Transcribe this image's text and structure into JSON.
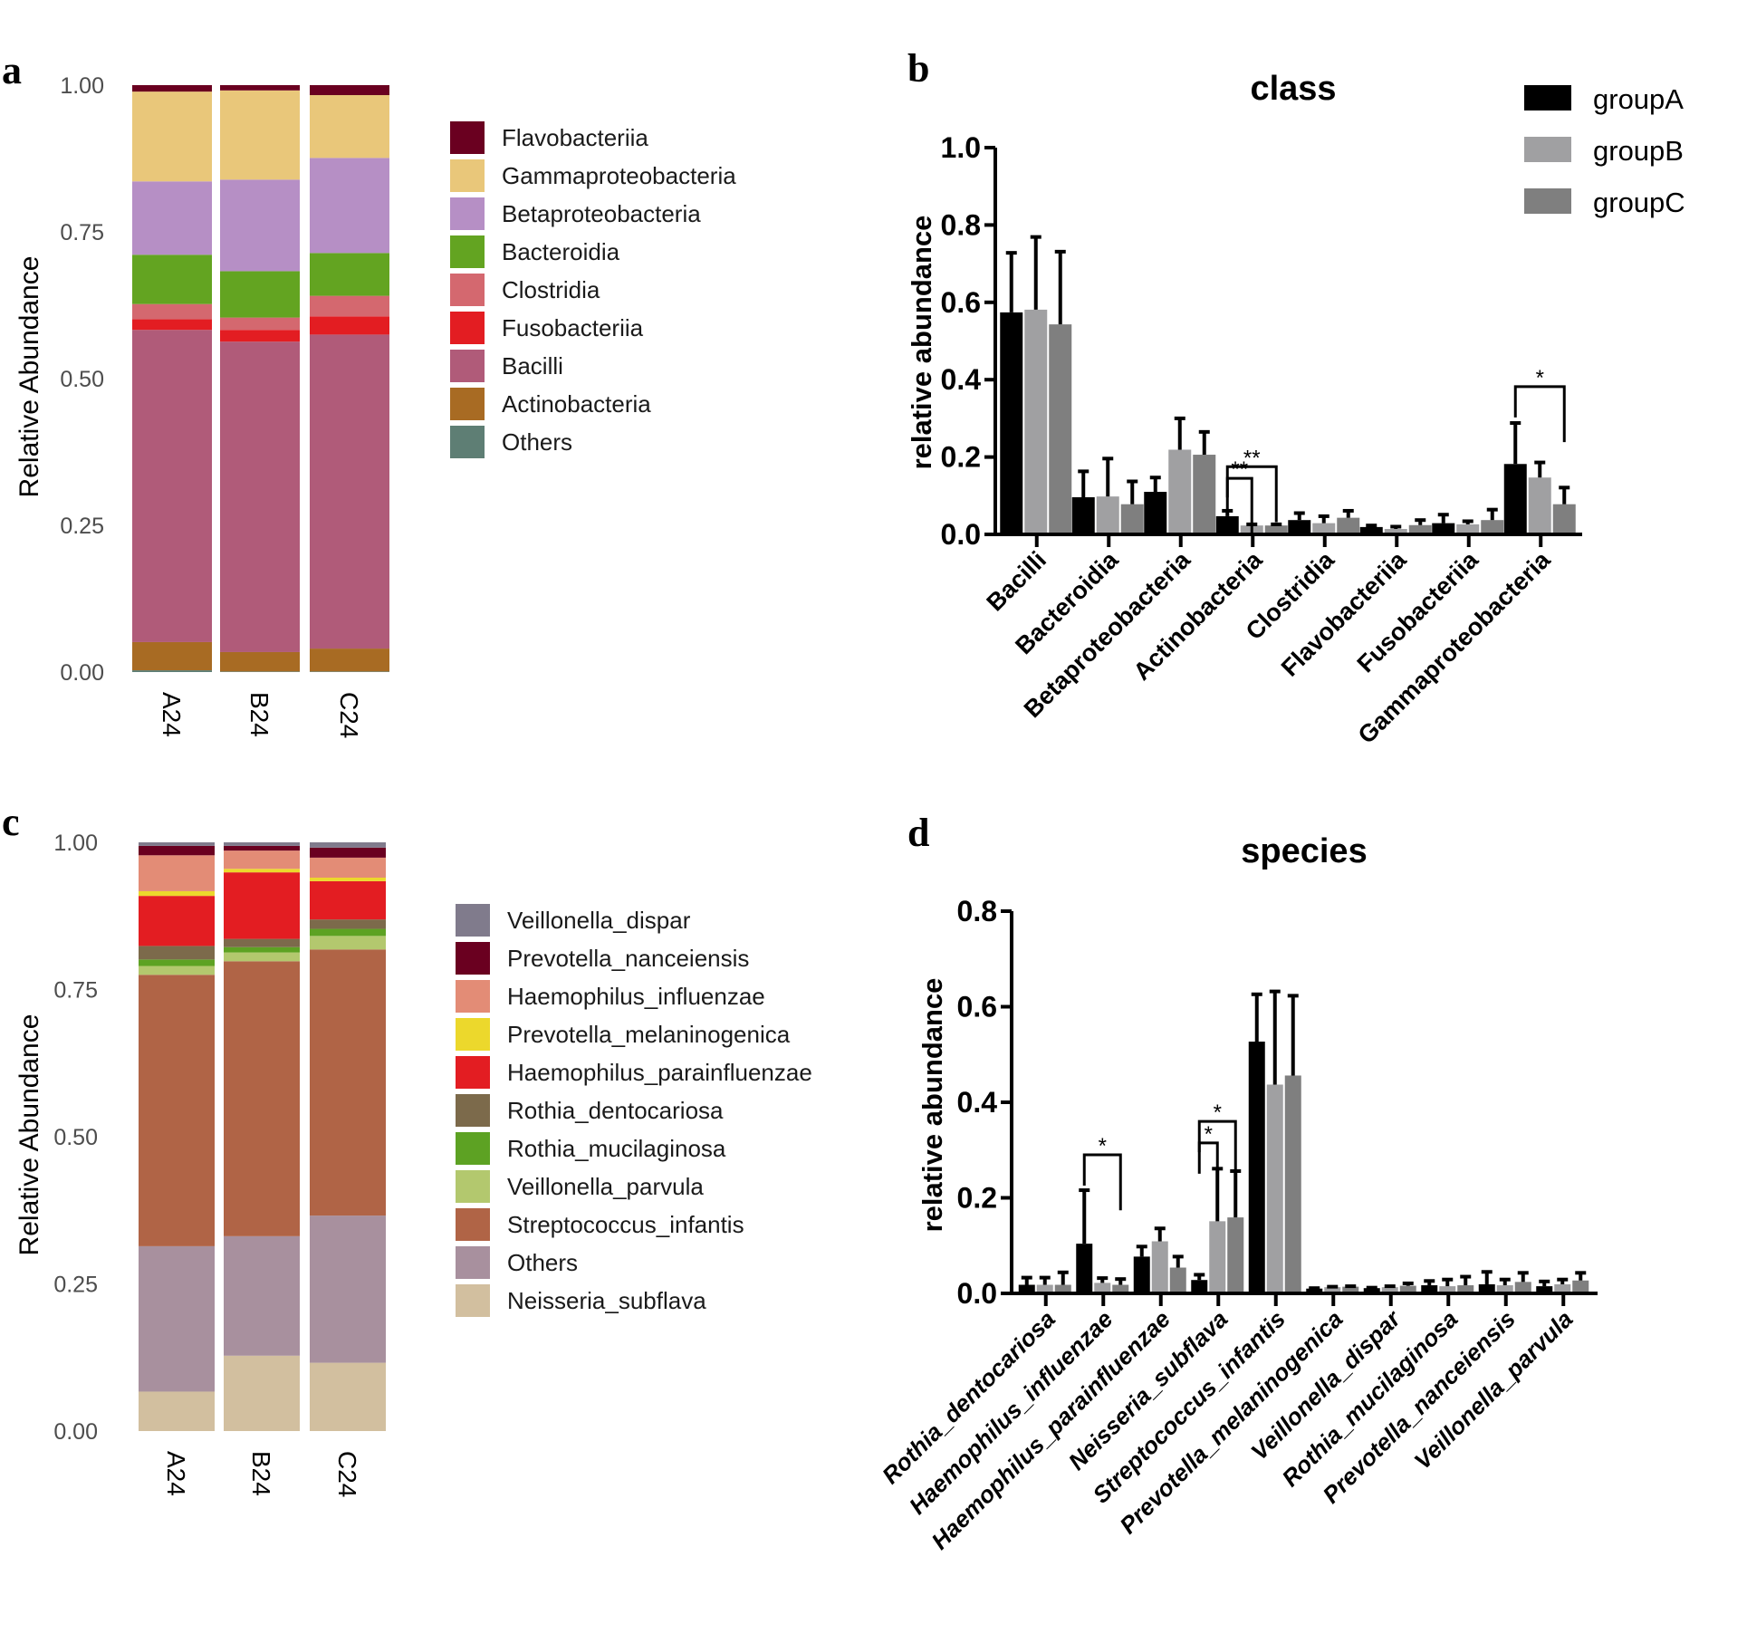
{
  "figure": {
    "panels": [
      "a",
      "b",
      "c",
      "d"
    ]
  },
  "chart_data": [
    {
      "id": "a",
      "type": "bar",
      "stacked": true,
      "panel_label": "a",
      "title": "",
      "xlabel": "",
      "ylabel": "Relative Abundance",
      "ylim": [
        0,
        1
      ],
      "yticks": [
        "0.00",
        "0.25",
        "0.50",
        "0.75",
        "1.00"
      ],
      "categories": [
        "A24",
        "B24",
        "C24"
      ],
      "legend_position": "right",
      "legend_order": [
        "Flavobacteriia",
        "Gammaproteobacteria",
        "Betaproteobacteria",
        "Bacteroidia",
        "Clostridia",
        "Fusobacteriia",
        "Bacilli",
        "Actinobacteria",
        "Others"
      ],
      "series": [
        {
          "name": "Others",
          "color": "#5e7e74",
          "values": [
            0.003,
            0.001,
            0.001
          ]
        },
        {
          "name": "Actinobacteria",
          "color": "#a86b23",
          "values": [
            0.048,
            0.033,
            0.039
          ]
        },
        {
          "name": "Bacilli",
          "color": "#b05b79",
          "values": [
            0.532,
            0.529,
            0.535
          ]
        },
        {
          "name": "Fusobacteriia",
          "color": "#e31d22",
          "values": [
            0.018,
            0.02,
            0.031
          ]
        },
        {
          "name": "Clostridia",
          "color": "#d4686f",
          "values": [
            0.026,
            0.021,
            0.035
          ]
        },
        {
          "name": "Bacteroidia",
          "color": "#63a421",
          "values": [
            0.084,
            0.079,
            0.073
          ]
        },
        {
          "name": "Betaproteobacteria",
          "color": "#b68fc5",
          "values": [
            0.125,
            0.156,
            0.162
          ]
        },
        {
          "name": "Gammaproteobacteria",
          "color": "#e9c77a",
          "values": [
            0.153,
            0.152,
            0.107
          ]
        },
        {
          "name": "Flavobacteriia",
          "color": "#6a0020",
          "values": [
            0.011,
            0.009,
            0.017
          ]
        }
      ]
    },
    {
      "id": "b",
      "type": "bar",
      "panel_label": "b",
      "title": "class",
      "xlabel": "",
      "ylabel": "relative abundance",
      "ylim": [
        0,
        1.0
      ],
      "yticks": [
        "0.0",
        "0.2",
        "0.4",
        "0.6",
        "0.8",
        "1.0"
      ],
      "categories": [
        "Bacilli",
        "Bacteroidia",
        "Betaproteobacteria",
        "Actinobacteria",
        "Clostridia",
        "Flavobacteriia",
        "Fusobacteriia",
        "Gammaproteobacteria"
      ],
      "legend_position": "top-right",
      "series": [
        {
          "name": "groupA",
          "color": "#000000",
          "values": [
            0.574,
            0.096,
            0.11,
            0.047,
            0.037,
            0.019,
            0.029,
            0.182
          ],
          "error_upper": [
            0.728,
            0.163,
            0.147,
            0.061,
            0.055,
            0.023,
            0.051,
            0.288
          ]
        },
        {
          "name": "groupB",
          "color": "#a0a0a2",
          "values": [
            0.581,
            0.098,
            0.219,
            0.023,
            0.029,
            0.014,
            0.026,
            0.147
          ],
          "error_upper": [
            0.769,
            0.196,
            0.3,
            0.026,
            0.047,
            0.02,
            0.034,
            0.186
          ]
        },
        {
          "name": "groupC",
          "color": "#7f7f7f",
          "values": [
            0.543,
            0.078,
            0.206,
            0.023,
            0.043,
            0.024,
            0.037,
            0.078
          ],
          "error_upper": [
            0.731,
            0.137,
            0.265,
            0.026,
            0.061,
            0.037,
            0.064,
            0.121
          ]
        }
      ],
      "significance": [
        {
          "category": "Actinobacteria",
          "from": "groupA",
          "to": "groupC",
          "label": "**",
          "y": 0.175
        },
        {
          "category": "Actinobacteria",
          "from": "groupA",
          "to": "groupB",
          "label": "**",
          "y": 0.145
        },
        {
          "category": "Gammaproteobacteria",
          "from": "groupA",
          "to": "groupC",
          "label": "*",
          "y": 0.382
        }
      ]
    },
    {
      "id": "c",
      "type": "bar",
      "stacked": true,
      "panel_label": "c",
      "title": "",
      "xlabel": "",
      "ylabel": "Relative Abundance",
      "ylim": [
        0,
        1
      ],
      "yticks": [
        "0.00",
        "0.25",
        "0.50",
        "0.75",
        "1.00"
      ],
      "categories": [
        "A24",
        "B24",
        "C24"
      ],
      "legend_position": "right",
      "legend_order": [
        "Veillonella_dispar",
        "Prevotella_nanceiensis",
        "Haemophilus_influenzae",
        "Prevotella_melaninogenica",
        "Haemophilus_parainfluenzae",
        "Rothia_dentocariosa",
        "Rothia_mucilaginosa",
        "Veillonella_parvula",
        "Streptococcus_infantis",
        "Others",
        "Neisseria_subflava"
      ],
      "series": [
        {
          "name": "Neisseria_subflava",
          "color": "#d2bf9f",
          "values": [
            0.067,
            0.128,
            0.116
          ]
        },
        {
          "name": "Others",
          "color": "#a8909e",
          "values": [
            0.247,
            0.203,
            0.25
          ]
        },
        {
          "name": "Streptococcus_infantis",
          "color": "#b06446",
          "values": [
            0.461,
            0.467,
            0.452
          ]
        },
        {
          "name": "Veillonella_parvula",
          "color": "#b3c86e",
          "values": [
            0.015,
            0.015,
            0.023
          ]
        },
        {
          "name": "Rothia_mucilaginosa",
          "color": "#5da223",
          "values": [
            0.011,
            0.009,
            0.012
          ]
        },
        {
          "name": "Rothia_dentocariosa",
          "color": "#7c6a4b",
          "values": [
            0.023,
            0.014,
            0.016
          ]
        },
        {
          "name": "Haemophilus_parainfluenzae",
          "color": "#e31d22",
          "values": [
            0.085,
            0.113,
            0.065
          ]
        },
        {
          "name": "Prevotella_melaninogenica",
          "color": "#ecd82c",
          "values": [
            0.008,
            0.006,
            0.006
          ]
        },
        {
          "name": "Haemophilus_influenzae",
          "color": "#e38c76",
          "values": [
            0.061,
            0.031,
            0.034
          ]
        },
        {
          "name": "Prevotella_nanceiensis",
          "color": "#6a0020",
          "values": [
            0.016,
            0.008,
            0.017
          ]
        },
        {
          "name": "Veillonella_dispar",
          "color": "#807b8c",
          "values": [
            0.006,
            0.006,
            0.009
          ]
        }
      ]
    },
    {
      "id": "d",
      "type": "bar",
      "panel_label": "d",
      "title": "species",
      "xlabel": "",
      "ylabel": "relative abundance",
      "ylim": [
        0,
        0.8
      ],
      "yticks": [
        "0.0",
        "0.2",
        "0.4",
        "0.6",
        "0.8"
      ],
      "categories": [
        "Rothia_dentocariosa",
        "Haemophilus_influenzae",
        "Haemophilus_parainfluenzae",
        "Neisseria_subflava",
        "Streptococcus_infantis",
        "Prevotella_melaninogenica",
        "Veillonella_dispar",
        "Rothia_mucilaginosa",
        "Prevotella_nanceiensis",
        "Veillonella_parvula"
      ],
      "series": [
        {
          "name": "groupA",
          "color": "#000000",
          "values": [
            0.018,
            0.104,
            0.077,
            0.028,
            0.527,
            0.01,
            0.011,
            0.017,
            0.019,
            0.015
          ],
          "error_upper": [
            0.033,
            0.216,
            0.098,
            0.039,
            0.626,
            0.011,
            0.012,
            0.026,
            0.045,
            0.025
          ]
        },
        {
          "name": "groupB",
          "color": "#a0a0a2",
          "values": [
            0.018,
            0.022,
            0.109,
            0.151,
            0.437,
            0.013,
            0.013,
            0.015,
            0.017,
            0.019
          ],
          "error_upper": [
            0.033,
            0.032,
            0.136,
            0.261,
            0.632,
            0.014,
            0.015,
            0.029,
            0.029,
            0.029
          ]
        },
        {
          "name": "groupC",
          "color": "#7f7f7f",
          "values": [
            0.018,
            0.018,
            0.054,
            0.159,
            0.456,
            0.014,
            0.016,
            0.017,
            0.024,
            0.027
          ],
          "error_upper": [
            0.044,
            0.03,
            0.077,
            0.256,
            0.623,
            0.015,
            0.021,
            0.035,
            0.043,
            0.043
          ]
        }
      ],
      "significance": [
        {
          "category": "Haemophilus_influenzae",
          "from": "groupA",
          "to": "groupC",
          "label": "*",
          "y": 0.29
        },
        {
          "category": "Neisseria_subflava",
          "from": "groupA",
          "to": "groupC",
          "label": "*",
          "y": 0.36
        },
        {
          "category": "Neisseria_subflava",
          "from": "groupA",
          "to": "groupB",
          "label": "*",
          "y": 0.315
        }
      ]
    }
  ]
}
